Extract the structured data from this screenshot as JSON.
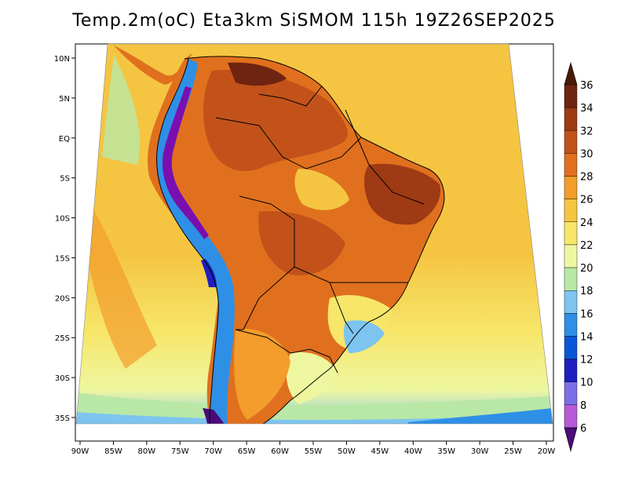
{
  "title": "Temp.2m(oC) Eta3km SiSMOM 115h 19Z26SEP2025",
  "lat_labels": [
    "10N",
    "5N",
    "EQ",
    "5S",
    "10S",
    "15S",
    "20S",
    "25S",
    "30S",
    "35S"
  ],
  "lon_labels": [
    "90W",
    "85W",
    "80W",
    "75W",
    "70W",
    "65W",
    "60W",
    "55W",
    "50W",
    "45W",
    "40W",
    "35W",
    "30W",
    "25W",
    "20W"
  ],
  "colorbar": {
    "labels": [
      "6",
      "8",
      "10",
      "12",
      "14",
      "16",
      "18",
      "20",
      "22",
      "24",
      "26",
      "28",
      "30",
      "32",
      "34",
      "36"
    ],
    "colors": [
      "#7a0fb0",
      "#b55bd6",
      "#7b6fe8",
      "#1f1fbf",
      "#0a57d6",
      "#2e8fe6",
      "#7dc4f0",
      "#b9e8a6",
      "#eef7a0",
      "#f7e66a",
      "#f5c542",
      "#f29d2c",
      "#e0701e",
      "#c2521a",
      "#9e3a14",
      "#6e2410"
    ],
    "under_color": "#4b0b7a",
    "over_color": "#4a1a08"
  },
  "colors": {
    "ocean_north": "#f5c542",
    "ocean_south": "#eef7a0",
    "land_hot": "#c2521a",
    "land_warm": "#e0701e",
    "andes": "#2e8fe6",
    "andes_cold": "#7a0fb0"
  }
}
